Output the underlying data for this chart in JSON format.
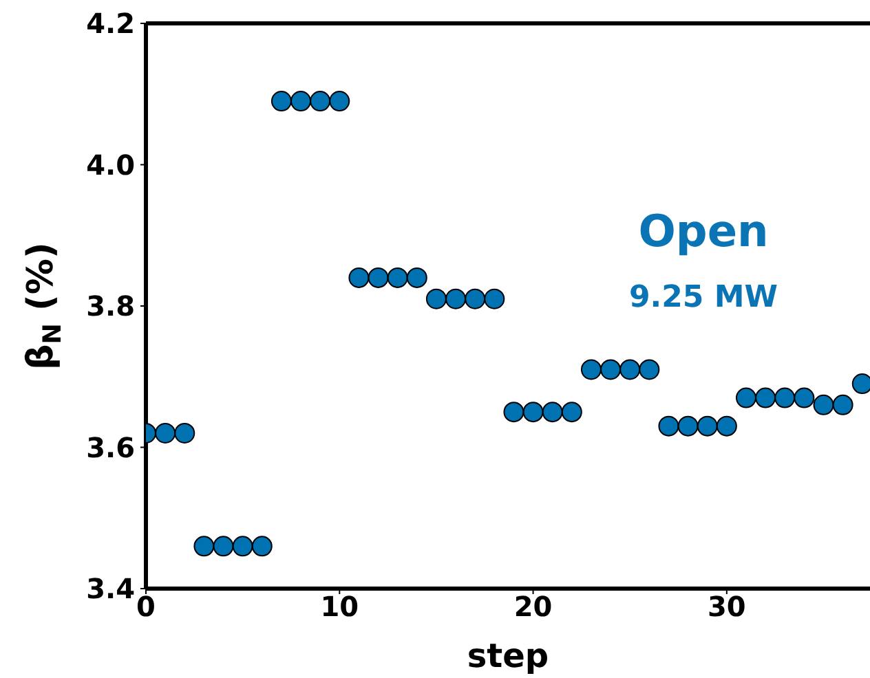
{
  "chart_data": {
    "type": "scatter",
    "xlabel": "step",
    "ylabel": "β$_{N}$ (%)",
    "x": [
      0,
      1,
      2,
      3,
      4,
      5,
      6,
      7,
      8,
      9,
      10,
      11,
      12,
      13,
      14,
      15,
      16,
      17,
      18,
      19,
      20,
      21,
      22,
      23,
      24,
      25,
      26,
      27,
      28,
      29,
      30,
      31,
      32,
      33,
      34,
      35,
      36,
      37
    ],
    "series": [
      {
        "color": "#0072b2",
        "values": [
          3.62,
          3.62,
          3.62,
          3.46,
          3.46,
          3.46,
          3.46,
          4.09,
          4.09,
          4.09,
          4.09,
          3.84,
          3.84,
          3.84,
          3.84,
          3.81,
          3.81,
          3.81,
          3.81,
          3.65,
          3.65,
          3.65,
          3.65,
          3.71,
          3.71,
          3.71,
          3.71,
          3.63,
          3.63,
          3.63,
          3.63,
          3.67,
          3.67,
          3.67,
          3.67,
          3.66,
          3.66,
          3.69
        ]
      }
    ],
    "xlim": [
      0,
      37.4
    ],
    "ylim": [
      3.4,
      4.2
    ],
    "xticks": [
      0,
      10,
      20,
      30
    ],
    "yticks": [
      {
        "value": 3.4,
        "label": "3.4"
      },
      {
        "value": 3.6,
        "label": "3.6"
      },
      {
        "value": 3.8,
        "label": "3.8"
      },
      {
        "value": 4,
        "label": "4.0"
      },
      {
        "value": 4.2,
        "label": "4.2"
      }
    ],
    "annotations": [
      "Open",
      "9.25 MW"
    ],
    "marker": "circle",
    "grid": false
  }
}
